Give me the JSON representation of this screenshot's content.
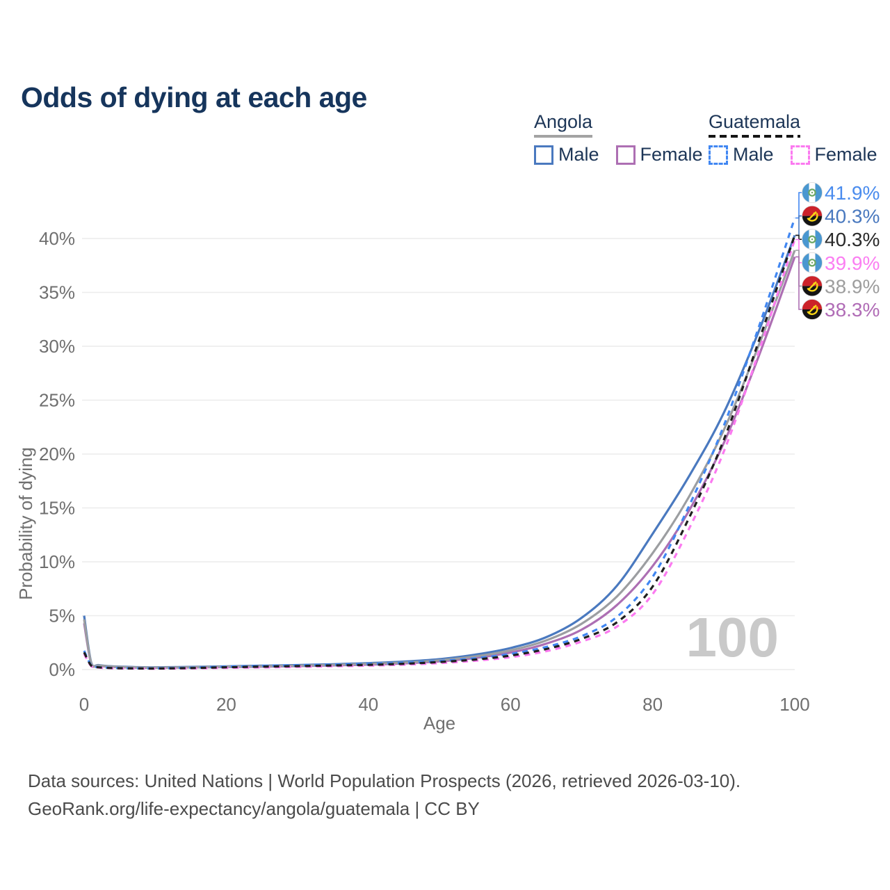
{
  "title": "Odds of dying at each age",
  "legend": {
    "groups": [
      {
        "country": "Angola",
        "line_style": "solid",
        "underline_color": "#a3a3a3",
        "items": [
          {
            "label": "Male",
            "color": "#4a79bf",
            "dashed": false,
            "series_index": 0
          },
          {
            "label": "Female",
            "color": "#ad6fb3",
            "dashed": false,
            "series_index": 1
          }
        ]
      },
      {
        "country": "Guatemala",
        "line_style": "dashed",
        "underline_color": "#151515",
        "items": [
          {
            "label": "Male",
            "color": "#4187f2",
            "dashed": true,
            "series_index": 3
          },
          {
            "label": "Female",
            "color": "#fb7af0",
            "dashed": true,
            "series_index": 4
          }
        ]
      }
    ]
  },
  "chart_data": {
    "type": "line",
    "title": "Odds of dying at each age",
    "xlabel": "Age",
    "ylabel": "Probability of dying",
    "xlim": [
      0,
      100
    ],
    "ylim": [
      0,
      40
    ],
    "x_ticks": [
      0,
      20,
      40,
      60,
      80,
      100
    ],
    "y_ticks": [
      0,
      5,
      10,
      15,
      20,
      25,
      30,
      35,
      40
    ],
    "y_tick_suffix": "%",
    "grid": "horizontal",
    "grid_color": "#ececec",
    "axis_text_color": "#6f6f6f",
    "watermark": "100",
    "watermark_color": "#c9c9c9",
    "x": [
      0,
      1,
      2,
      4,
      7,
      10,
      15,
      20,
      25,
      30,
      35,
      40,
      45,
      50,
      55,
      60,
      65,
      70,
      75,
      80,
      85,
      90,
      95,
      100
    ],
    "series": [
      {
        "name": "Angola Male",
        "country": "Angola",
        "sex": "Male",
        "color": "#4a79bf",
        "dashed": false,
        "flag": "ao",
        "end_label": "40.3%",
        "label_color": "#4a79bf",
        "values": [
          5.0,
          0.65,
          0.42,
          0.3,
          0.24,
          0.21,
          0.25,
          0.3,
          0.36,
          0.42,
          0.5,
          0.6,
          0.74,
          0.97,
          1.38,
          2.0,
          3.0,
          4.8,
          7.8,
          12.6,
          17.8,
          23.8,
          31.5,
          40.3
        ]
      },
      {
        "name": "Angola Female",
        "country": "Angola",
        "sex": "Female",
        "color": "#ad6fb3",
        "dashed": false,
        "flag": "ao",
        "end_label": "38.3%",
        "label_color": "#b06cb6",
        "values": [
          4.3,
          0.55,
          0.36,
          0.25,
          0.19,
          0.17,
          0.2,
          0.23,
          0.27,
          0.32,
          0.39,
          0.46,
          0.57,
          0.76,
          1.08,
          1.58,
          2.4,
          3.7,
          6.0,
          9.6,
          14.6,
          21.0,
          29.2,
          38.3
        ]
      },
      {
        "name": "Angola Both sexes",
        "country": "Angola",
        "sex": "Both sexes",
        "color": "#9c9ea1",
        "dashed": false,
        "flag": "ao",
        "end_label": "38.9%",
        "label_color": "#9d9d9d",
        "values": [
          4.65,
          0.6,
          0.39,
          0.28,
          0.21,
          0.19,
          0.22,
          0.27,
          0.31,
          0.37,
          0.44,
          0.53,
          0.65,
          0.86,
          1.22,
          1.78,
          2.7,
          4.25,
          6.8,
          10.8,
          15.9,
          22.2,
          30.2,
          38.9
        ]
      },
      {
        "name": "Guatemala Male",
        "country": "Guatemala",
        "sex": "Male",
        "color": "#4187f2",
        "dashed": true,
        "flag": "gt",
        "end_label": "41.9%",
        "label_color": "#4a8cee",
        "values": [
          1.75,
          0.4,
          0.24,
          0.16,
          0.13,
          0.12,
          0.18,
          0.27,
          0.34,
          0.4,
          0.46,
          0.52,
          0.63,
          0.8,
          1.05,
          1.45,
          2.1,
          3.1,
          4.9,
          8.6,
          15.0,
          22.6,
          31.9,
          41.9
        ]
      },
      {
        "name": "Guatemala Female",
        "country": "Guatemala",
        "sex": "Female",
        "color": "#fb7af0",
        "dashed": true,
        "flag": "gt",
        "end_label": "39.9%",
        "label_color": "#fb7ef2",
        "values": [
          1.45,
          0.32,
          0.19,
          0.12,
          0.1,
          0.09,
          0.11,
          0.16,
          0.2,
          0.25,
          0.31,
          0.37,
          0.46,
          0.6,
          0.82,
          1.15,
          1.7,
          2.6,
          4.0,
          7.0,
          12.9,
          20.2,
          29.6,
          39.9
        ]
      },
      {
        "name": "Guatemala Both sexes",
        "country": "Guatemala",
        "sex": "Both sexes",
        "color": "#1f1f1f",
        "dashed": true,
        "flag": "gt",
        "end_label": "40.3%",
        "label_color": "#2a2a2a",
        "values": [
          1.6,
          0.36,
          0.21,
          0.14,
          0.11,
          0.1,
          0.14,
          0.21,
          0.27,
          0.32,
          0.38,
          0.44,
          0.54,
          0.7,
          0.93,
          1.3,
          1.9,
          2.85,
          4.4,
          7.7,
          13.9,
          21.3,
          30.6,
          40.3
        ]
      }
    ],
    "legend_position": "top-right"
  },
  "footer": {
    "line1": "Data sources: United Nations | World Population Prospects (2026, retrieved 2026-03-10).",
    "line2": "GeoRank.org/life-expectancy/angola/guatemala | CC BY"
  }
}
